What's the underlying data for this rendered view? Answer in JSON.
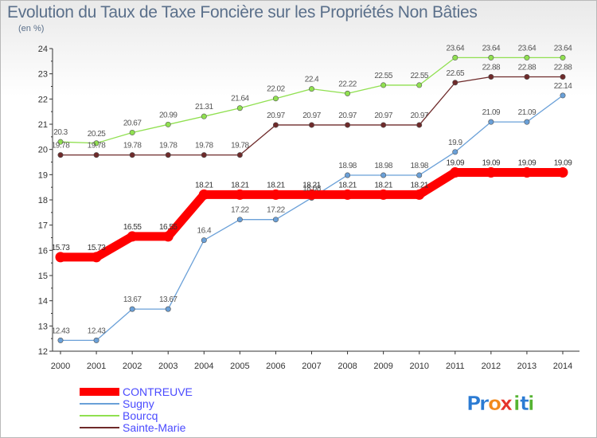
{
  "chart_data": {
    "type": "line",
    "title": "Evolution du Taux de Taxe Foncière sur les Propriétés Non Bâties",
    "subtitle": "(en %)",
    "x": [
      "2000",
      "2001",
      "2002",
      "2003",
      "2004",
      "2005",
      "2006",
      "2007",
      "2008",
      "2009",
      "2010",
      "2011",
      "2012",
      "2013",
      "2014"
    ],
    "ylim": [
      12,
      24
    ],
    "yticks": [
      "12",
      "13",
      "14",
      "15",
      "16",
      "17",
      "18",
      "19",
      "20",
      "21",
      "22",
      "23",
      "24"
    ],
    "series": [
      {
        "name": "CONTREUVE",
        "color": "#ff0000",
        "values": [
          15.73,
          15.73,
          16.55,
          16.55,
          18.21,
          18.21,
          18.21,
          18.21,
          18.21,
          18.21,
          18.21,
          19.09,
          19.09,
          19.09,
          19.09
        ],
        "labels": [
          "15.73",
          "15.73",
          "16.55",
          "16.55",
          "18.21",
          "18.21",
          "18.21",
          "18.21",
          "18.21",
          "18.21",
          "18.21",
          "19.09",
          "19.09",
          "19.09",
          "19.09"
        ]
      },
      {
        "name": "Sugny",
        "color": "#6aa0d8",
        "values": [
          12.43,
          12.43,
          13.67,
          13.67,
          16.4,
          17.22,
          17.22,
          18.08,
          18.98,
          18.98,
          18.98,
          19.9,
          21.09,
          21.09,
          22.14
        ],
        "labels": [
          "12.43",
          "12.43",
          "13.67",
          "13.67",
          "16.4",
          "17.22",
          "17.22",
          "18.08",
          "18.98",
          "18.98",
          "18.98",
          "19.9",
          "21.09",
          "21.09",
          "22.14"
        ]
      },
      {
        "name": "Bourcq",
        "color": "#90e050",
        "values": [
          20.3,
          20.25,
          20.67,
          20.99,
          21.31,
          21.64,
          22.02,
          22.4,
          22.22,
          22.55,
          22.55,
          23.64,
          23.64,
          23.64,
          23.64
        ],
        "labels": [
          "20.3",
          "20.25",
          "20.67",
          "20.99",
          "21.31",
          "21.64",
          "22.02",
          "22.4",
          "22.22",
          "22.55",
          "22.55",
          "23.64",
          "23.64",
          "23.64",
          "23.64"
        ]
      },
      {
        "name": "Sainte-Marie",
        "color": "#6e2a2a",
        "values": [
          19.78,
          19.78,
          19.78,
          19.78,
          19.78,
          19.78,
          20.97,
          20.97,
          20.97,
          20.97,
          20.97,
          22.65,
          22.88,
          22.88,
          22.88
        ],
        "labels": [
          "19.78",
          "19.78",
          "19.78",
          "19.78",
          "19.78",
          "19.78",
          "20.97",
          "20.97",
          "20.97",
          "20.97",
          "20.97",
          "22.65",
          "22.88",
          "22.88",
          "22.88"
        ]
      }
    ],
    "legend": "bottom-left",
    "grid": false
  },
  "brand": {
    "name": "Proxiti",
    "letters": [
      "P",
      "r",
      "o",
      "x",
      "i",
      "t",
      "i"
    ],
    "colors": [
      "#2b7bd3",
      "#2b7bd3",
      "#f28a1c",
      "#e5332a",
      "#55b332",
      "#2b7bd3",
      "#55b332"
    ]
  }
}
